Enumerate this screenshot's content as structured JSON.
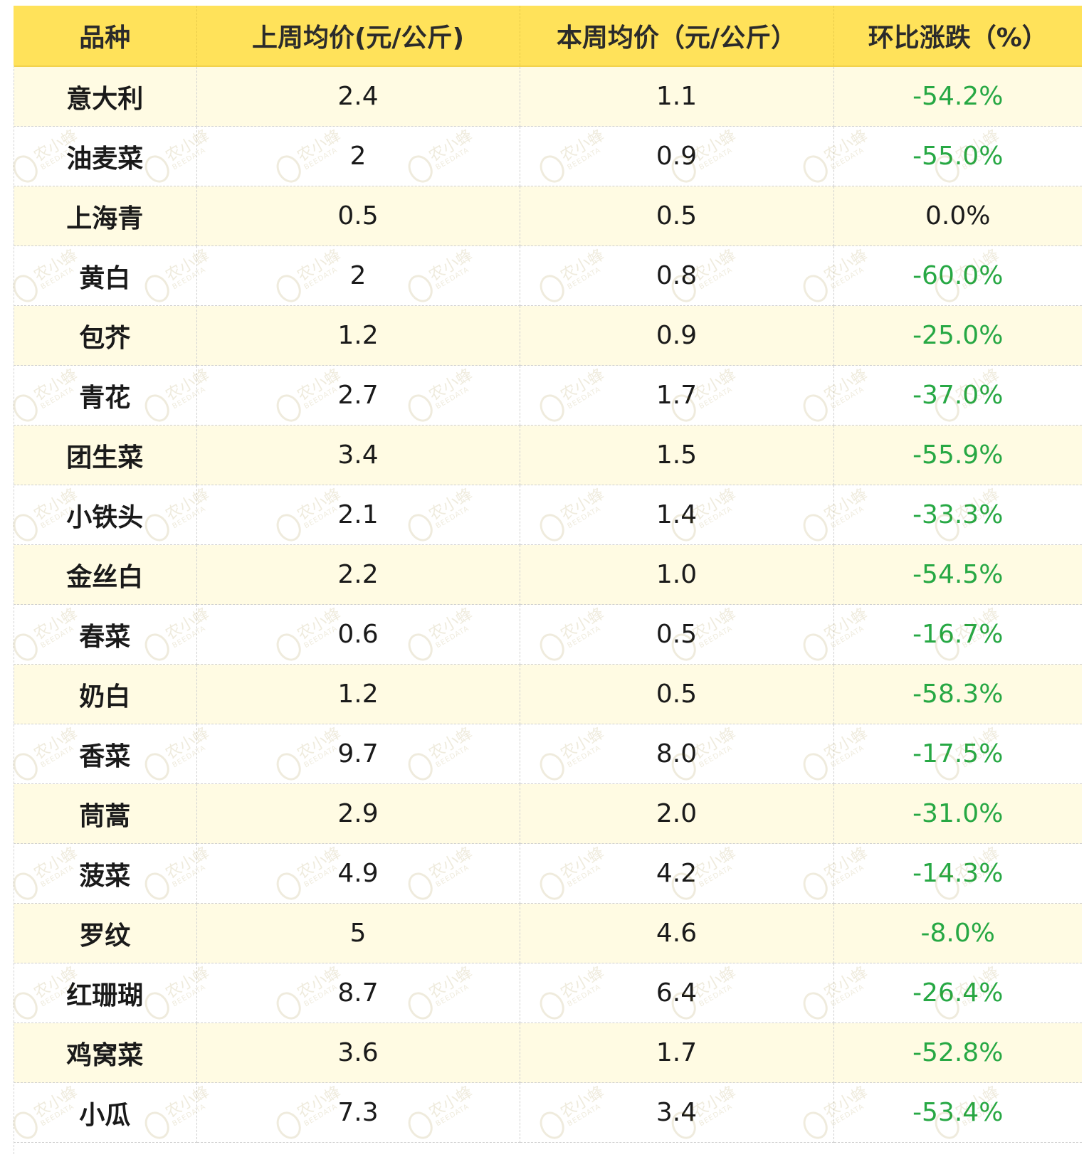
{
  "table": {
    "headers": [
      "品种",
      "上周均价(元/公斤)",
      "本周均价（元/公斤）",
      "环比涨跌（%）"
    ],
    "rows": [
      {
        "variety": "意大利",
        "last_week": "2.4",
        "this_week": "1.1",
        "change": "-54.2%"
      },
      {
        "variety": "油麦菜",
        "last_week": "2",
        "this_week": "0.9",
        "change": "-55.0%"
      },
      {
        "variety": "上海青",
        "last_week": "0.5",
        "this_week": "0.5",
        "change": "0.0%"
      },
      {
        "variety": "黄白",
        "last_week": "2",
        "this_week": "0.8",
        "change": "-60.0%"
      },
      {
        "variety": "包芥",
        "last_week": "1.2",
        "this_week": "0.9",
        "change": "-25.0%"
      },
      {
        "variety": "青花",
        "last_week": "2.7",
        "this_week": "1.7",
        "change": "-37.0%"
      },
      {
        "variety": "团生菜",
        "last_week": "3.4",
        "this_week": "1.5",
        "change": "-55.9%"
      },
      {
        "variety": "小铁头",
        "last_week": "2.1",
        "this_week": "1.4",
        "change": "-33.3%"
      },
      {
        "variety": "金丝白",
        "last_week": "2.2",
        "this_week": "1.0",
        "change": "-54.5%"
      },
      {
        "variety": "春菜",
        "last_week": "0.6",
        "this_week": "0.5",
        "change": "-16.7%"
      },
      {
        "variety": "奶白",
        "last_week": "1.2",
        "this_week": "0.5",
        "change": "-58.3%"
      },
      {
        "variety": "香菜",
        "last_week": "9.7",
        "this_week": "8.0",
        "change": "-17.5%"
      },
      {
        "variety": "茼蒿",
        "last_week": "2.9",
        "this_week": "2.0",
        "change": "-31.0%"
      },
      {
        "variety": "菠菜",
        "last_week": "4.9",
        "this_week": "4.2",
        "change": "-14.3%"
      },
      {
        "variety": "罗纹",
        "last_week": "5",
        "this_week": "4.6",
        "change": "-8.0%"
      },
      {
        "variety": "红珊瑚",
        "last_week": "8.7",
        "this_week": "6.4",
        "change": "-26.4%"
      },
      {
        "variety": "鸡窝菜",
        "last_week": "3.6",
        "this_week": "1.7",
        "change": "-52.8%"
      },
      {
        "variety": "小瓜",
        "last_week": "7.3",
        "this_week": "3.4",
        "change": "-53.4%"
      }
    ]
  },
  "watermark": {
    "cn": "农小蜂",
    "en": "BEEDATA",
    "icon": "bee-icon"
  },
  "colors": {
    "header_bg": "#ffe25a",
    "odd_row_bg": "#fffbe3",
    "down": "#27a844",
    "flat": "#1a1a1a"
  }
}
